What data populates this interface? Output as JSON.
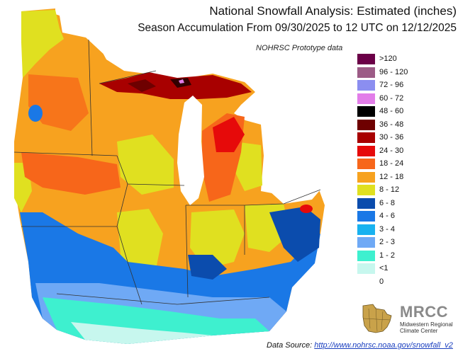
{
  "title": "National Snowfall Analysis: Estimated (inches)",
  "subtitle": "Season Accumulation From 09/30/2025 to 12 UTC on 12/12/2025",
  "note": "NOHRSC Prototype data",
  "legend": [
    {
      "label": ">120",
      "color": "#6b0047"
    },
    {
      "label": "96 - 120",
      "color": "#9c5b86"
    },
    {
      "label": "72 - 96",
      "color": "#8b8ef0"
    },
    {
      "label": "60 - 72",
      "color": "#e27de9"
    },
    {
      "label": "48 - 60",
      "color": "#000000"
    },
    {
      "label": "36 - 48",
      "color": "#6e0000"
    },
    {
      "label": "30 - 36",
      "color": "#a80000"
    },
    {
      "label": "24 - 30",
      "color": "#e60a0a"
    },
    {
      "label": "18 - 24",
      "color": "#f7661a"
    },
    {
      "label": "12 - 18",
      "color": "#f7a21f"
    },
    {
      "label": "8 - 12",
      "color": "#e0e020"
    },
    {
      "label": "6 - 8",
      "color": "#0b4cad"
    },
    {
      "label": "4 - 6",
      "color": "#1a78e6"
    },
    {
      "label": "3 - 4",
      "color": "#18b2f0"
    },
    {
      "label": "2 - 3",
      "color": "#6fa9f5"
    },
    {
      "label": "1 - 2",
      "color": "#3ef0cf"
    },
    {
      "label": "<1",
      "color": "#c7f7ee"
    },
    {
      "label": "0",
      "color": "#ffffff"
    }
  ],
  "source_prefix": "Data Source: ",
  "source_url": "http://www.nohrsc.noaa.gov/snowfall_v2",
  "logo": {
    "name": "MRCC",
    "subtitle": "Midwestern Regional Climate Center"
  }
}
